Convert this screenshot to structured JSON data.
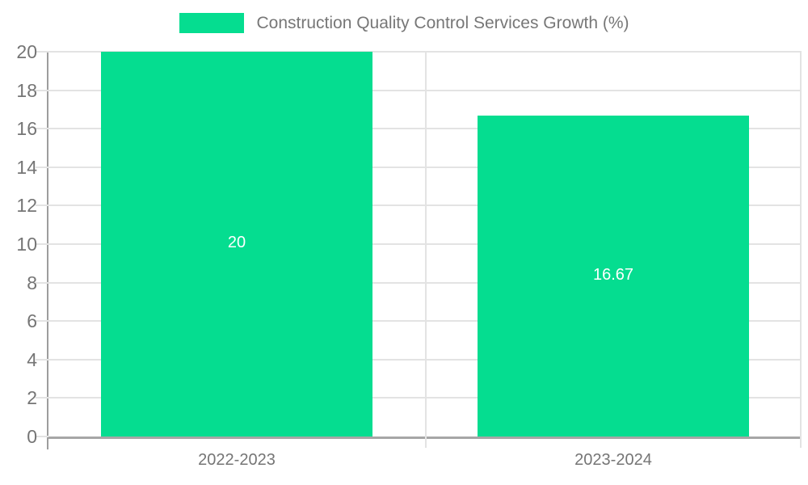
{
  "legend": {
    "label": "Construction Quality Control Services Growth (%)",
    "position": "top-center"
  },
  "chart_data": {
    "type": "bar",
    "title": "Construction Quality Control Services Growth (%)",
    "categories": [
      "2022-2023",
      "2023-2024"
    ],
    "values": [
      20,
      16.67
    ],
    "value_labels": [
      "20",
      "16.67"
    ],
    "xlabel": "",
    "ylabel": "",
    "ylim": [
      0,
      20
    ],
    "yticks": [
      0,
      2,
      4,
      6,
      8,
      10,
      12,
      14,
      16,
      18,
      20
    ],
    "grid": true,
    "legend_position": "top-center"
  },
  "colors": {
    "bar": "#05DD90",
    "grid": "#e3e3e3",
    "axis_y": "#9d9d9d",
    "axis_x": "#a6a6a6",
    "tick_label": "#757575",
    "category_label": "#757575",
    "value_label": "#ffffff",
    "legend_text": "#777777",
    "background": "#ffffff"
  }
}
